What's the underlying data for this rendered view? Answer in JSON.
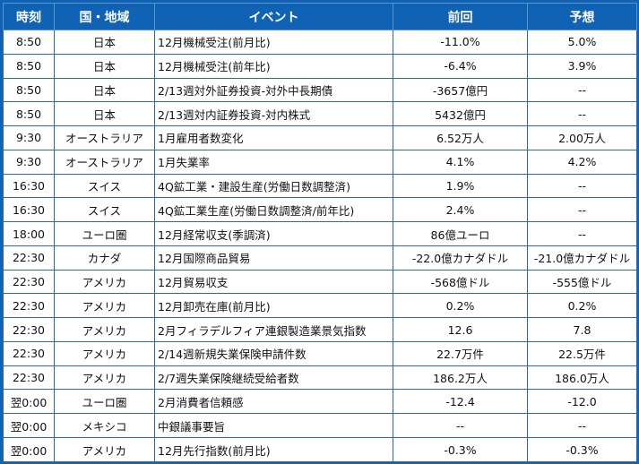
{
  "headers": {
    "time": "時刻",
    "region": "国・地域",
    "event": "イベント",
    "previous": "前回",
    "forecast": "予想"
  },
  "rows": [
    {
      "time": "8:50",
      "region": "日本",
      "event": "12月機械受注(前月比)",
      "previous": "-11.0%",
      "forecast": "5.0%"
    },
    {
      "time": "8:50",
      "region": "日本",
      "event": "12月機械受注(前年比)",
      "previous": "-6.4%",
      "forecast": "3.9%"
    },
    {
      "time": "8:50",
      "region": "日本",
      "event": "2/13週対外証券投資-対外中長期債",
      "previous": "-3657億円",
      "forecast": "--"
    },
    {
      "time": "8:50",
      "region": "日本",
      "event": "2/13週対内証券投資-対内株式",
      "previous": "5432億円",
      "forecast": "--"
    },
    {
      "time": "9:30",
      "region": "オーストラリア",
      "event": "1月雇用者数変化",
      "previous": "6.52万人",
      "forecast": "2.00万人"
    },
    {
      "time": "9:30",
      "region": "オーストラリア",
      "event": "1月失業率",
      "previous": "4.1%",
      "forecast": "4.2%"
    },
    {
      "time": "16:30",
      "region": "スイス",
      "event": "4Q鉱工業・建設生産(労働日数調整済)",
      "previous": "1.9%",
      "forecast": "--"
    },
    {
      "time": "16:30",
      "region": "スイス",
      "event": "4Q鉱工業生産(労働日数調整済/前年比)",
      "previous": "2.4%",
      "forecast": "--"
    },
    {
      "time": "18:00",
      "region": "ユーロ圏",
      "event": "12月経常収支(季調済)",
      "previous": "86億ユーロ",
      "forecast": "--"
    },
    {
      "time": "22:30",
      "region": "カナダ",
      "event": "12月国際商品貿易",
      "previous": "-22.0億カナダドル",
      "forecast": "-21.0億カナダドル"
    },
    {
      "time": "22:30",
      "region": "アメリカ",
      "event": "12月貿易収支",
      "previous": "-568億ドル",
      "forecast": "-555億ドル"
    },
    {
      "time": "22:30",
      "region": "アメリカ",
      "event": "12月卸売在庫(前月比)",
      "previous": "0.2%",
      "forecast": "0.2%"
    },
    {
      "time": "22:30",
      "region": "アメリカ",
      "event": "2月フィラデルフィア連銀製造業景気指数",
      "previous": "12.6",
      "forecast": "7.8"
    },
    {
      "time": "22:30",
      "region": "アメリカ",
      "event": "2/14週新規失業保険申請件数",
      "previous": "22.7万件",
      "forecast": "22.5万件"
    },
    {
      "time": "22:30",
      "region": "アメリカ",
      "event": "2/7週失業保険継続受給者数",
      "previous": "186.2万人",
      "forecast": "186.0万人"
    },
    {
      "time": "翌0:00",
      "region": "ユーロ圏",
      "event": "2月消費者信頼感",
      "previous": "-12.4",
      "forecast": "-12.0"
    },
    {
      "time": "翌0:00",
      "region": "メキシコ",
      "event": "中銀議事要旨",
      "previous": "--",
      "forecast": "--"
    },
    {
      "time": "翌0:00",
      "region": "アメリカ",
      "event": "12月先行指数(前月比)",
      "previous": "-0.3%",
      "forecast": "-0.3%"
    }
  ]
}
